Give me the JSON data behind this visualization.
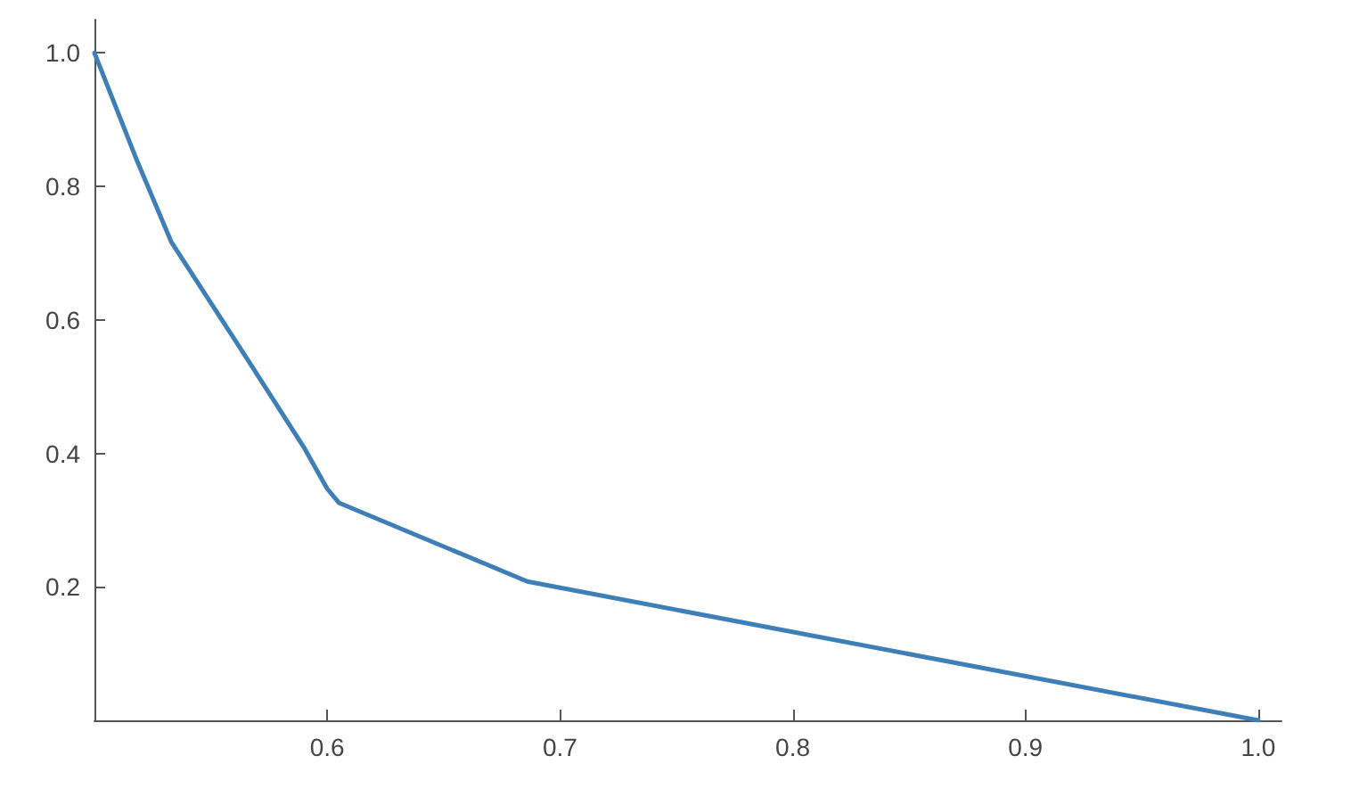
{
  "chart_data": {
    "type": "line",
    "x": [
      0.5,
      0.518,
      0.533,
      0.565,
      0.59,
      0.6,
      0.605,
      0.686,
      1.0
    ],
    "values": [
      1.0,
      0.841,
      0.717,
      0.545,
      0.409,
      0.347,
      0.326,
      0.208,
      0.0
    ],
    "color": "#3d7fb6",
    "xlim": [
      0.5,
      1.01
    ],
    "ylim": [
      0,
      1.05
    ],
    "xticks": [
      0.6,
      0.7,
      0.8,
      0.9,
      {
        "value": 1,
        "label": "1.0"
      }
    ],
    "yticks": [
      0.2,
      0.4,
      0.6,
      0.8,
      {
        "value": 1,
        "label": "1.0"
      }
    ],
    "grid": false,
    "marker": "none",
    "line_style": "solid"
  }
}
